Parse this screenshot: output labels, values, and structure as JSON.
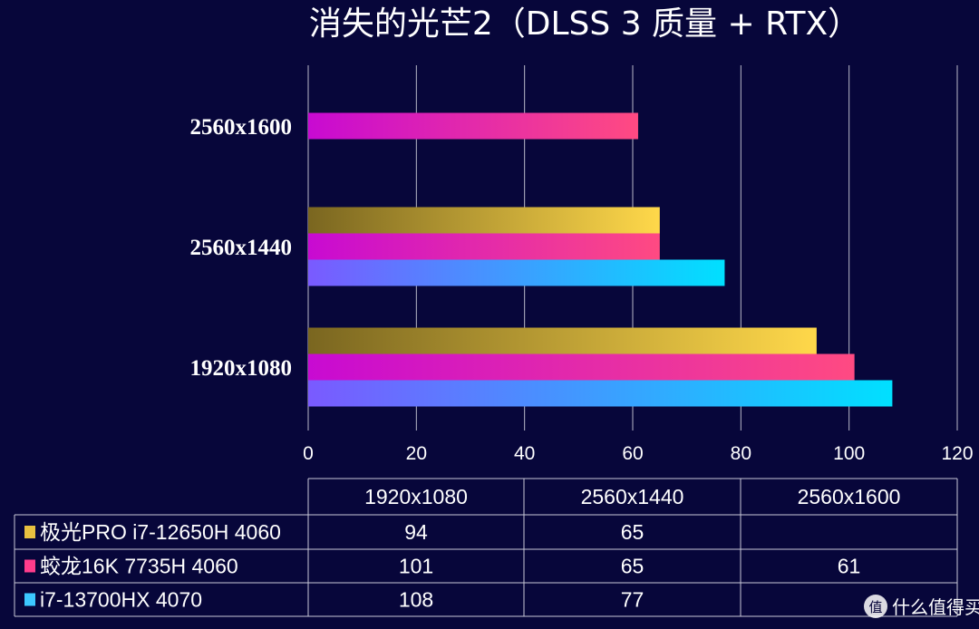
{
  "chart_data": {
    "type": "bar",
    "orientation": "horizontal",
    "title": "消失的光芒2（DLSS 3 质量 + RTX）",
    "categories": [
      "1920x1080",
      "2560x1440",
      "2560x1600"
    ],
    "series": [
      {
        "name": "极光PRO i7-12650H 4060",
        "values": [
          94,
          65,
          null
        ],
        "color_from": "#7a6620",
        "color_to": "#ffd84a",
        "legend_color": "#e8c040"
      },
      {
        "name": "蛟龙16K 7735H 4060",
        "values": [
          101,
          65,
          61
        ],
        "color_from": "#c80ad2",
        "color_to": "#ff4a82",
        "legend_color": "#ff3c8c"
      },
      {
        "name": "i7-13700HX 4070",
        "values": [
          108,
          77,
          null
        ],
        "color_from": "#7a5aff",
        "color_to": "#00e0ff",
        "legend_color": "#3cc8ff"
      }
    ],
    "xlim": [
      0,
      120
    ],
    "xticks": [
      0,
      20,
      40,
      60,
      80,
      100,
      120
    ],
    "grid": true,
    "data_table": true
  },
  "watermark": {
    "text": "什么值得买",
    "icon_glyph": "值"
  }
}
